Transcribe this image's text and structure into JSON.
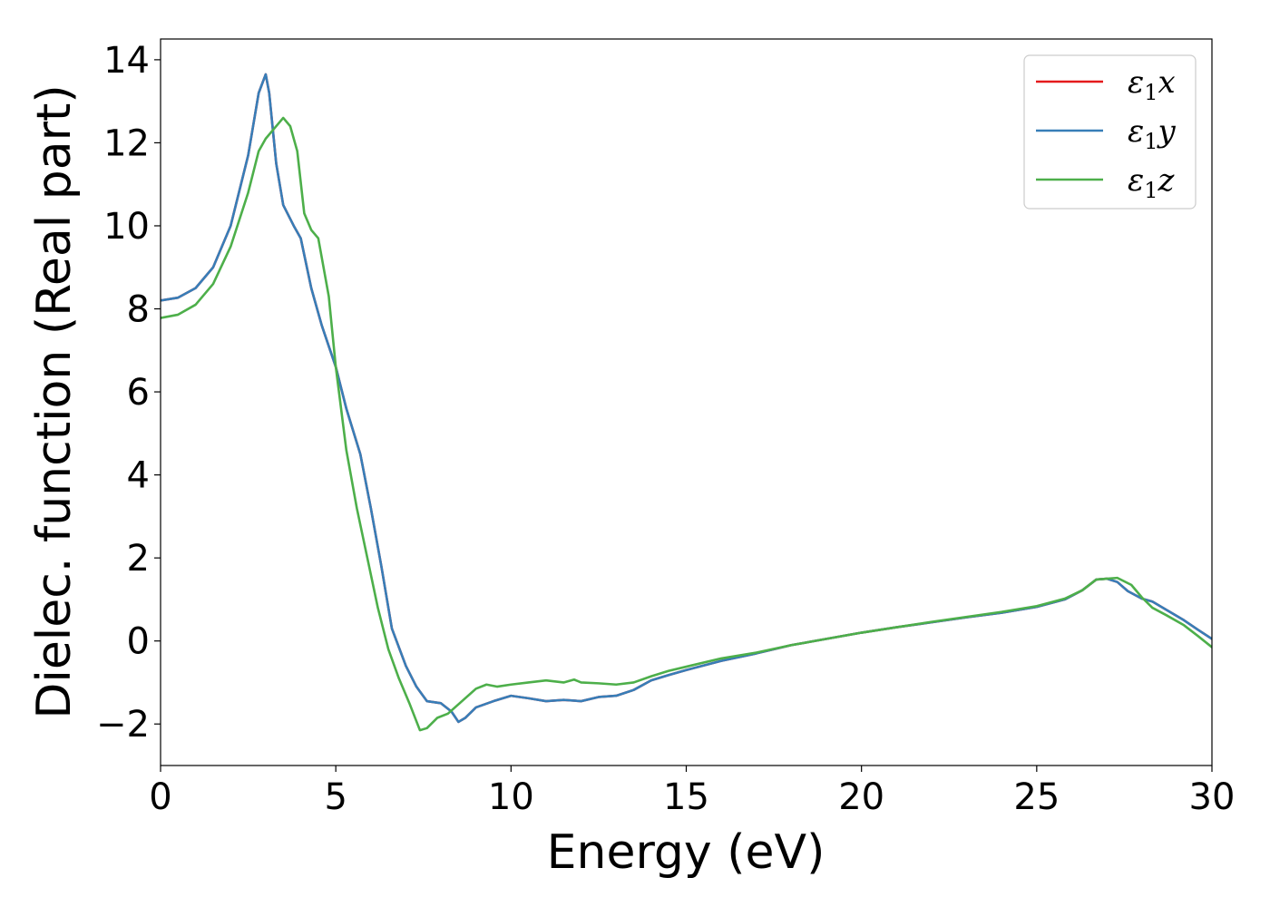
{
  "chart_data": {
    "type": "line",
    "xlabel": "Energy (eV)",
    "ylabel": "Dielec. function (Real part)",
    "xlim": [
      0,
      30
    ],
    "ylim": [
      -3,
      14.5
    ],
    "xticks": [
      0,
      5,
      10,
      15,
      20,
      25,
      30
    ],
    "xtick_labels": [
      "0",
      "5",
      "10",
      "15",
      "20",
      "25",
      "30"
    ],
    "yticks": [
      -2,
      0,
      2,
      4,
      6,
      8,
      10,
      12,
      14
    ],
    "ytick_labels": [
      "−2",
      "0",
      "2",
      "4",
      "6",
      "8",
      "10",
      "12",
      "14"
    ],
    "grid": false,
    "legend_position": "top-right",
    "series": [
      {
        "name_base": "ε",
        "name_sub": "1",
        "name_suffix": "x",
        "color": "#e41a1c",
        "points": [
          [
            0,
            8.2
          ],
          [
            0.5,
            8.27
          ],
          [
            1,
            8.5
          ],
          [
            1.5,
            9.0
          ],
          [
            2,
            10.0
          ],
          [
            2.5,
            11.7
          ],
          [
            2.8,
            13.2
          ],
          [
            3.0,
            13.65
          ],
          [
            3.1,
            13.2
          ],
          [
            3.3,
            11.5
          ],
          [
            3.5,
            10.5
          ],
          [
            3.8,
            10.0
          ],
          [
            4.0,
            9.7
          ],
          [
            4.3,
            8.5
          ],
          [
            4.6,
            7.6
          ],
          [
            5.0,
            6.6
          ],
          [
            5.3,
            5.6
          ],
          [
            5.7,
            4.5
          ],
          [
            6.0,
            3.2
          ],
          [
            6.3,
            1.8
          ],
          [
            6.6,
            0.3
          ],
          [
            7.0,
            -0.6
          ],
          [
            7.3,
            -1.1
          ],
          [
            7.6,
            -1.45
          ],
          [
            8.0,
            -1.5
          ],
          [
            8.3,
            -1.7
          ],
          [
            8.5,
            -1.95
          ],
          [
            8.7,
            -1.85
          ],
          [
            9.0,
            -1.6
          ],
          [
            9.5,
            -1.45
          ],
          [
            10,
            -1.32
          ],
          [
            10.5,
            -1.38
          ],
          [
            11,
            -1.45
          ],
          [
            11.5,
            -1.42
          ],
          [
            12,
            -1.45
          ],
          [
            12.5,
            -1.35
          ],
          [
            13,
            -1.32
          ],
          [
            13.5,
            -1.18
          ],
          [
            14,
            -0.95
          ],
          [
            14.5,
            -0.82
          ],
          [
            15,
            -0.7
          ],
          [
            16,
            -0.48
          ],
          [
            17,
            -0.3
          ],
          [
            18,
            -0.1
          ],
          [
            19,
            0.05
          ],
          [
            20,
            0.2
          ],
          [
            21,
            0.33
          ],
          [
            22,
            0.45
          ],
          [
            23,
            0.57
          ],
          [
            24,
            0.68
          ],
          [
            25,
            0.82
          ],
          [
            25.8,
            1.0
          ],
          [
            26.3,
            1.22
          ],
          [
            26.7,
            1.48
          ],
          [
            27.0,
            1.5
          ],
          [
            27.3,
            1.42
          ],
          [
            27.6,
            1.2
          ],
          [
            28.0,
            1.02
          ],
          [
            28.3,
            0.95
          ],
          [
            28.7,
            0.75
          ],
          [
            29.2,
            0.5
          ],
          [
            29.6,
            0.27
          ],
          [
            30,
            0.05
          ]
        ]
      },
      {
        "name_base": "ε",
        "name_sub": "1",
        "name_suffix": "y",
        "color": "#377eb8",
        "points": [
          [
            0,
            8.2
          ],
          [
            0.5,
            8.27
          ],
          [
            1,
            8.5
          ],
          [
            1.5,
            9.0
          ],
          [
            2,
            10.0
          ],
          [
            2.5,
            11.7
          ],
          [
            2.8,
            13.2
          ],
          [
            3.0,
            13.65
          ],
          [
            3.1,
            13.2
          ],
          [
            3.3,
            11.5
          ],
          [
            3.5,
            10.5
          ],
          [
            3.8,
            10.0
          ],
          [
            4.0,
            9.7
          ],
          [
            4.3,
            8.5
          ],
          [
            4.6,
            7.6
          ],
          [
            5.0,
            6.6
          ],
          [
            5.3,
            5.6
          ],
          [
            5.7,
            4.5
          ],
          [
            6.0,
            3.2
          ],
          [
            6.3,
            1.8
          ],
          [
            6.6,
            0.3
          ],
          [
            7.0,
            -0.6
          ],
          [
            7.3,
            -1.1
          ],
          [
            7.6,
            -1.45
          ],
          [
            8.0,
            -1.5
          ],
          [
            8.3,
            -1.7
          ],
          [
            8.5,
            -1.95
          ],
          [
            8.7,
            -1.85
          ],
          [
            9.0,
            -1.6
          ],
          [
            9.5,
            -1.45
          ],
          [
            10,
            -1.32
          ],
          [
            10.5,
            -1.38
          ],
          [
            11,
            -1.45
          ],
          [
            11.5,
            -1.42
          ],
          [
            12,
            -1.45
          ],
          [
            12.5,
            -1.35
          ],
          [
            13,
            -1.32
          ],
          [
            13.5,
            -1.18
          ],
          [
            14,
            -0.95
          ],
          [
            14.5,
            -0.82
          ],
          [
            15,
            -0.7
          ],
          [
            16,
            -0.48
          ],
          [
            17,
            -0.3
          ],
          [
            18,
            -0.1
          ],
          [
            19,
            0.05
          ],
          [
            20,
            0.2
          ],
          [
            21,
            0.33
          ],
          [
            22,
            0.45
          ],
          [
            23,
            0.57
          ],
          [
            24,
            0.68
          ],
          [
            25,
            0.82
          ],
          [
            25.8,
            1.0
          ],
          [
            26.3,
            1.22
          ],
          [
            26.7,
            1.48
          ],
          [
            27.0,
            1.5
          ],
          [
            27.3,
            1.42
          ],
          [
            27.6,
            1.2
          ],
          [
            28.0,
            1.02
          ],
          [
            28.3,
            0.95
          ],
          [
            28.7,
            0.75
          ],
          [
            29.2,
            0.5
          ],
          [
            29.6,
            0.27
          ],
          [
            30,
            0.05
          ]
        ]
      },
      {
        "name_base": "ε",
        "name_sub": "1",
        "name_suffix": "z",
        "color": "#4daf4a",
        "points": [
          [
            0,
            7.78
          ],
          [
            0.5,
            7.86
          ],
          [
            1,
            8.1
          ],
          [
            1.5,
            8.6
          ],
          [
            2,
            9.5
          ],
          [
            2.5,
            10.8
          ],
          [
            2.8,
            11.8
          ],
          [
            3.0,
            12.1
          ],
          [
            3.2,
            12.3
          ],
          [
            3.5,
            12.6
          ],
          [
            3.7,
            12.4
          ],
          [
            3.9,
            11.8
          ],
          [
            4.1,
            10.3
          ],
          [
            4.3,
            9.9
          ],
          [
            4.5,
            9.7
          ],
          [
            4.8,
            8.3
          ],
          [
            5.0,
            6.6
          ],
          [
            5.3,
            4.6
          ],
          [
            5.6,
            3.2
          ],
          [
            5.9,
            2.0
          ],
          [
            6.2,
            0.8
          ],
          [
            6.5,
            -0.2
          ],
          [
            6.8,
            -0.9
          ],
          [
            7.1,
            -1.5
          ],
          [
            7.4,
            -2.15
          ],
          [
            7.6,
            -2.1
          ],
          [
            7.9,
            -1.85
          ],
          [
            8.2,
            -1.75
          ],
          [
            8.6,
            -1.45
          ],
          [
            9.0,
            -1.15
          ],
          [
            9.3,
            -1.05
          ],
          [
            9.6,
            -1.1
          ],
          [
            10,
            -1.05
          ],
          [
            10.5,
            -1.0
          ],
          [
            11,
            -0.95
          ],
          [
            11.5,
            -1.0
          ],
          [
            11.8,
            -0.93
          ],
          [
            12,
            -1.0
          ],
          [
            12.5,
            -1.02
          ],
          [
            13,
            -1.05
          ],
          [
            13.5,
            -1.0
          ],
          [
            14,
            -0.85
          ],
          [
            14.5,
            -0.72
          ],
          [
            15,
            -0.62
          ],
          [
            16,
            -0.42
          ],
          [
            17,
            -0.28
          ],
          [
            18,
            -0.1
          ],
          [
            19,
            0.05
          ],
          [
            20,
            0.2
          ],
          [
            21,
            0.33
          ],
          [
            22,
            0.46
          ],
          [
            23,
            0.58
          ],
          [
            24,
            0.7
          ],
          [
            25,
            0.84
          ],
          [
            25.8,
            1.02
          ],
          [
            26.3,
            1.22
          ],
          [
            26.7,
            1.48
          ],
          [
            27.0,
            1.5
          ],
          [
            27.3,
            1.52
          ],
          [
            27.7,
            1.35
          ],
          [
            28.0,
            1.05
          ],
          [
            28.3,
            0.8
          ],
          [
            28.7,
            0.62
          ],
          [
            29.2,
            0.38
          ],
          [
            29.6,
            0.12
          ],
          [
            30,
            -0.15
          ]
        ]
      }
    ]
  }
}
